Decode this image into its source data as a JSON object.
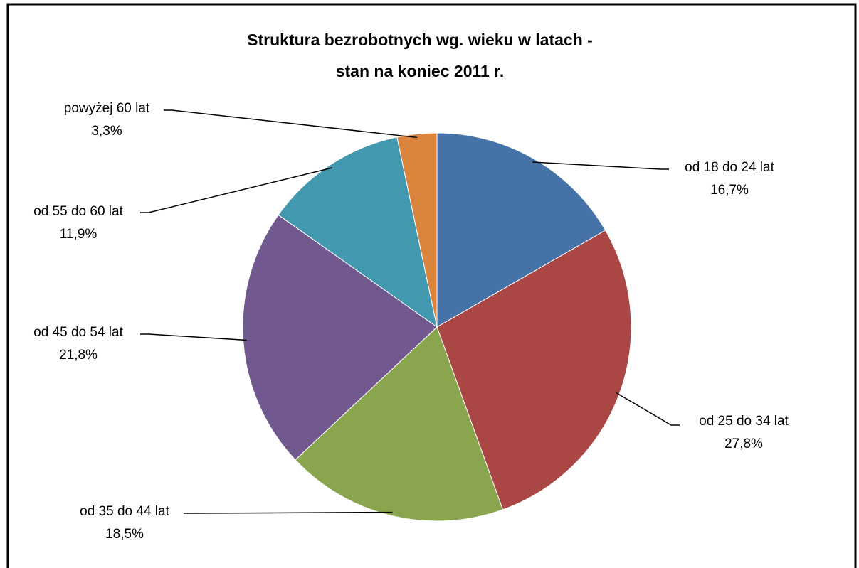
{
  "chart_data": {
    "type": "pie",
    "title": [
      "Struktura bezrobotnych wg. wieku w latach -",
      "stan na koniec 2011 r."
    ],
    "categories": [
      "od 18 do 24 lat",
      "od 25 do 34 lat",
      "od 35 do 44 lat",
      "od 45 do 54 lat",
      "od 55 do 60 lat",
      "powyżej 60 lat"
    ],
    "values": [
      16.7,
      27.8,
      18.5,
      21.8,
      11.9,
      3.3
    ],
    "value_labels": [
      "16,7%",
      "27,8%",
      "18,5%",
      "21,8%",
      "11,9%",
      "3,3%"
    ],
    "colors": [
      "#4572a7",
      "#aa4643",
      "#89a54e",
      "#71588f",
      "#4198af",
      "#db843d"
    ]
  }
}
